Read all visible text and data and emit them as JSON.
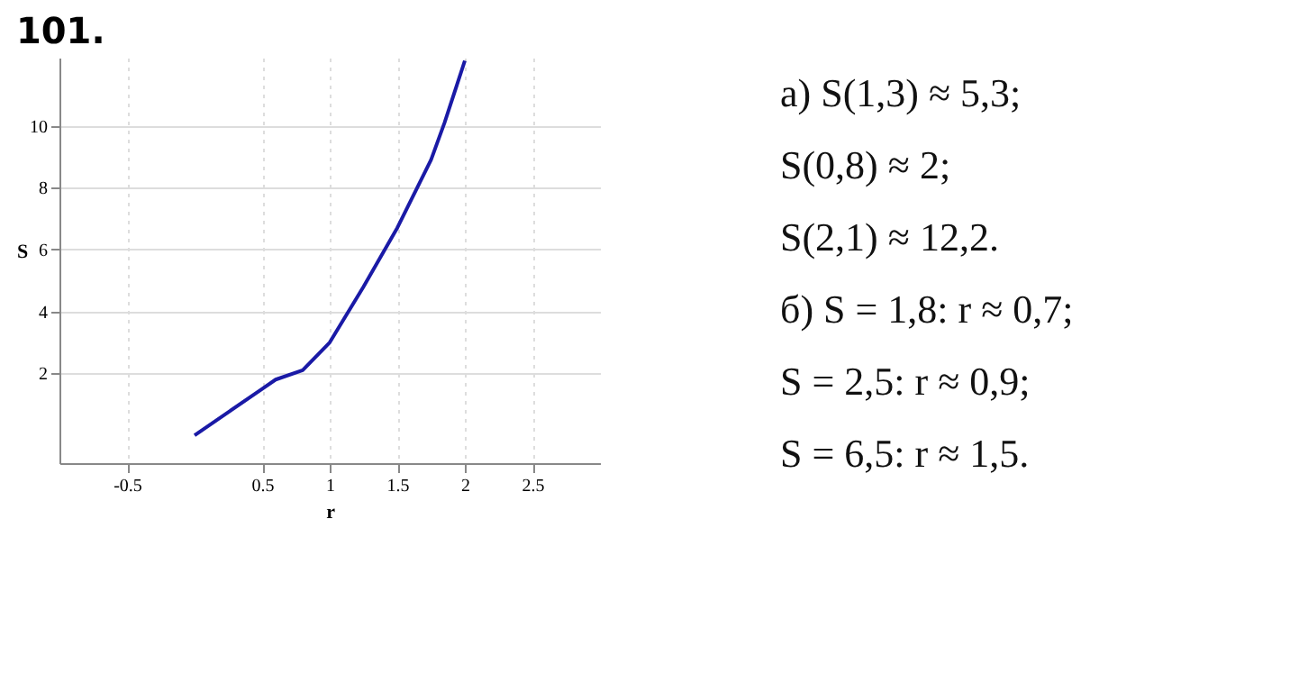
{
  "chart_data": {
    "type": "line",
    "title": "101.",
    "xlabel": "r",
    "ylabel": "S",
    "x": [
      0,
      0.25,
      0.5,
      0.6,
      0.8,
      1,
      1.25,
      1.5,
      1.75,
      1.85,
      2
    ],
    "series": [
      {
        "color": "#1a1aa6",
        "values": [
          0,
          0.75,
          1.5,
          1.8,
          2.1,
          3,
          4.8,
          6.7,
          8.9,
          10.1,
          12.1
        ]
      }
    ],
    "xlim": [
      -1,
      3
    ],
    "ylim": [
      -0.9,
      12.2
    ],
    "xticks": [
      -0.5,
      0.5,
      1,
      1.5,
      2,
      2.5
    ],
    "yticks": [
      2,
      4,
      6,
      8,
      10
    ],
    "grid": true,
    "marker": "none",
    "line_style": "solid",
    "annotations": [
      "а) S(1,3) ≈ 5,3;",
      "S(0,8) ≈ 2;",
      "S(2,1) ≈ 12,2.",
      "б) S = 1,8:  r ≈ 0,7;",
      "S = 2,5:  r ≈ 0,9;",
      "S = 6,5:  r ≈ 1,5."
    ]
  }
}
